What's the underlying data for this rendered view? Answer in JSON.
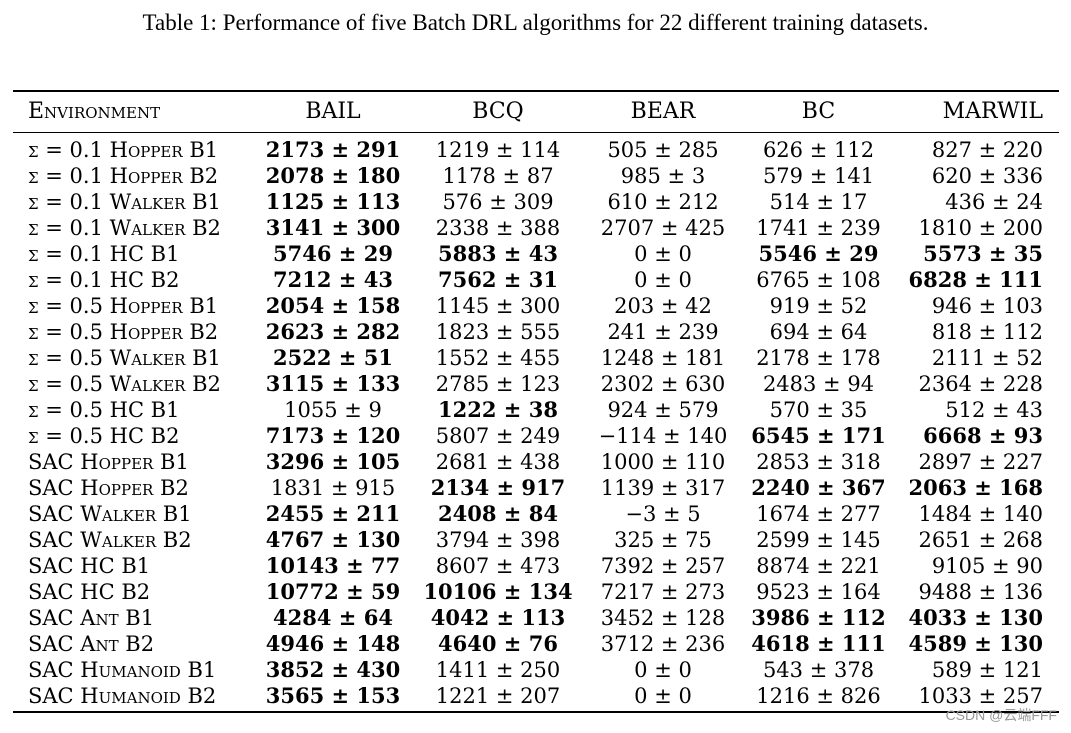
{
  "caption": "Table 1: Performance of five Batch DRL algorithms for 22 different training datasets.",
  "columns": [
    "Environment",
    "BAIL",
    "BCQ",
    "BEAR",
    "BC",
    "MARWIL"
  ],
  "rows": [
    {
      "env": "σ = 0.1 Hopper B1",
      "v": [
        "2173 ± 291",
        "1219 ± 114",
        "505 ± 285",
        "626 ± 112",
        "827 ± 220"
      ],
      "bold": [
        true,
        false,
        false,
        false,
        false
      ]
    },
    {
      "env": "σ = 0.1 Hopper B2",
      "v": [
        "2078 ± 180",
        "1178 ± 87",
        "985 ± 3",
        "579 ± 141",
        "620 ± 336"
      ],
      "bold": [
        true,
        false,
        false,
        false,
        false
      ]
    },
    {
      "env": "σ = 0.1 Walker B1",
      "v": [
        "1125 ± 113",
        "576 ± 309",
        "610 ± 212",
        "514 ± 17",
        "436 ± 24"
      ],
      "bold": [
        true,
        false,
        false,
        false,
        false
      ]
    },
    {
      "env": "σ = 0.1 Walker B2",
      "v": [
        "3141 ± 300",
        "2338 ± 388",
        "2707 ± 425",
        "1741 ± 239",
        "1810 ± 200"
      ],
      "bold": [
        true,
        false,
        false,
        false,
        false
      ]
    },
    {
      "env": "σ = 0.1 HC B1",
      "v": [
        "5746 ± 29",
        "5883 ± 43",
        "0 ± 0",
        "5546 ± 29",
        "5573 ± 35"
      ],
      "bold": [
        true,
        true,
        false,
        true,
        true
      ]
    },
    {
      "env": "σ = 0.1 HC B2",
      "v": [
        "7212 ± 43",
        "7562 ± 31",
        "0 ± 0",
        "6765 ± 108",
        "6828 ± 111"
      ],
      "bold": [
        true,
        true,
        false,
        false,
        true
      ]
    },
    {
      "env": "σ = 0.5 Hopper B1",
      "v": [
        "2054 ± 158",
        "1145 ± 300",
        "203 ± 42",
        "919 ± 52",
        "946 ± 103"
      ],
      "bold": [
        true,
        false,
        false,
        false,
        false
      ]
    },
    {
      "env": "σ = 0.5 Hopper B2",
      "v": [
        "2623 ± 282",
        "1823 ± 555",
        "241 ± 239",
        "694 ± 64",
        "818 ± 112"
      ],
      "bold": [
        true,
        false,
        false,
        false,
        false
      ]
    },
    {
      "env": "σ = 0.5 Walker B1",
      "v": [
        "2522 ± 51",
        "1552 ± 455",
        "1248 ± 181",
        "2178 ± 178",
        "2111 ± 52"
      ],
      "bold": [
        true,
        false,
        false,
        false,
        false
      ]
    },
    {
      "env": "σ = 0.5 Walker B2",
      "v": [
        "3115 ± 133",
        "2785 ± 123",
        "2302 ± 630",
        "2483 ± 94",
        "2364 ± 228"
      ],
      "bold": [
        true,
        false,
        false,
        false,
        false
      ]
    },
    {
      "env": "σ = 0.5 HC B1",
      "v": [
        "1055 ± 9",
        "1222 ± 38",
        "924 ± 579",
        "570 ± 35",
        "512 ± 43"
      ],
      "bold": [
        false,
        true,
        false,
        false,
        false
      ]
    },
    {
      "env": "σ = 0.5 HC B2",
      "v": [
        "7173 ± 120",
        "5807 ± 249",
        "−114 ± 140",
        "6545 ± 171",
        "6668 ± 93"
      ],
      "bold": [
        true,
        false,
        false,
        true,
        true
      ]
    },
    {
      "env": "SAC Hopper B1",
      "v": [
        "3296 ± 105",
        "2681 ± 438",
        "1000 ± 110",
        "2853 ± 318",
        "2897 ± 227"
      ],
      "bold": [
        true,
        false,
        false,
        false,
        false
      ]
    },
    {
      "env": "SAC Hopper B2",
      "v": [
        "1831 ± 915",
        "2134 ± 917",
        "1139 ± 317",
        "2240 ± 367",
        "2063 ± 168"
      ],
      "bold": [
        false,
        true,
        false,
        true,
        true
      ]
    },
    {
      "env": "SAC Walker B1",
      "v": [
        "2455 ± 211",
        "2408 ± 84",
        "−3 ± 5",
        "1674 ± 277",
        "1484 ± 140"
      ],
      "bold": [
        true,
        true,
        false,
        false,
        false
      ]
    },
    {
      "env": "SAC Walker B2",
      "v": [
        "4767 ± 130",
        "3794 ± 398",
        "325 ± 75",
        "2599 ± 145",
        "2651 ± 268"
      ],
      "bold": [
        true,
        false,
        false,
        false,
        false
      ]
    },
    {
      "env": "SAC HC B1",
      "v": [
        "10143 ± 77",
        "8607 ± 473",
        "7392 ± 257",
        "8874 ± 221",
        "9105 ± 90"
      ],
      "bold": [
        true,
        false,
        false,
        false,
        false
      ]
    },
    {
      "env": "SAC HC B2",
      "v": [
        "10772 ± 59",
        "10106 ± 134",
        "7217 ± 273",
        "9523 ± 164",
        "9488 ± 136"
      ],
      "bold": [
        true,
        true,
        false,
        false,
        false
      ]
    },
    {
      "env": "SAC Ant B1",
      "v": [
        "4284 ± 64",
        "4042 ± 113",
        "3452 ± 128",
        "3986 ± 112",
        "4033 ± 130"
      ],
      "bold": [
        true,
        true,
        false,
        true,
        true
      ]
    },
    {
      "env": "SAC Ant B2",
      "v": [
        "4946 ± 148",
        "4640 ± 76",
        "3712 ± 236",
        "4618 ± 111",
        "4589 ± 130"
      ],
      "bold": [
        true,
        true,
        false,
        true,
        true
      ]
    },
    {
      "env": "SAC Humanoid B1",
      "v": [
        "3852 ± 430",
        "1411 ± 250",
        "0 ± 0",
        "543 ± 378",
        "589 ± 121"
      ],
      "bold": [
        true,
        false,
        false,
        false,
        false
      ]
    },
    {
      "env": "SAC Humanoid B2",
      "v": [
        "3565 ± 153",
        "1221 ± 207",
        "0 ± 0",
        "1216 ± 826",
        "1033 ± 257"
      ],
      "bold": [
        true,
        false,
        false,
        false,
        false
      ]
    }
  ],
  "watermark": "CSDN @云端FFF"
}
